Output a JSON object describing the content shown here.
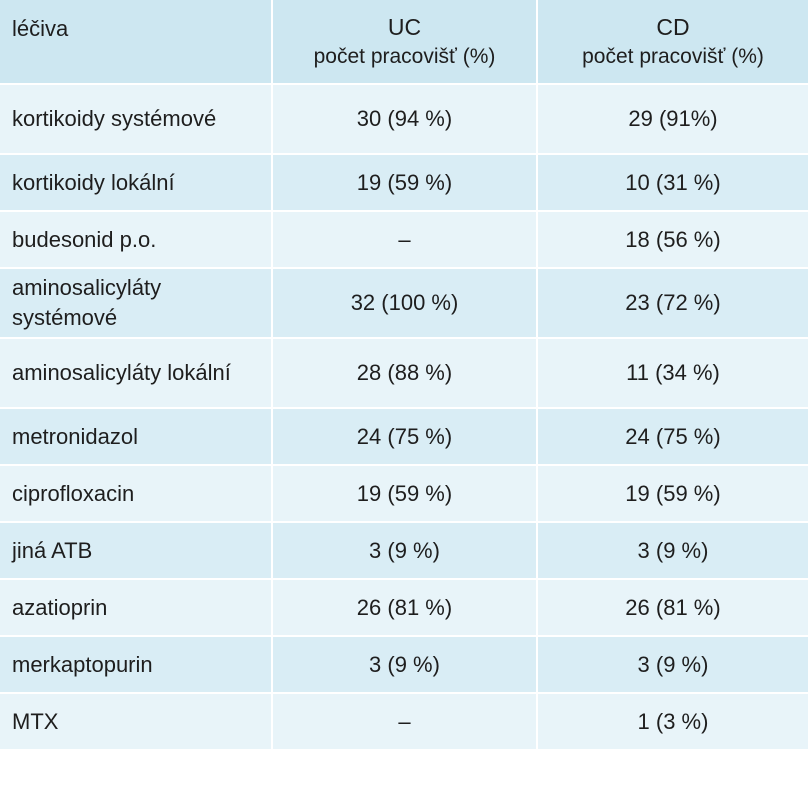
{
  "header": {
    "col1": "léčiva",
    "uc_title": "UC",
    "uc_sub": "počet pracovišť (%)",
    "cd_title": "CD",
    "cd_sub": "počet pracovišť (%)"
  },
  "rows": [
    {
      "drug": "kortikoidy systémové",
      "uc": "30 (94 %)",
      "cd": "29 (91%)"
    },
    {
      "drug": "kortikoidy lokální",
      "uc": "19 (59 %)",
      "cd": "10 (31 %)"
    },
    {
      "drug": "budesonid p.o.",
      "uc": "–",
      "cd": "18 (56 %)"
    },
    {
      "drug": "aminosalicyláty systémové",
      "uc": "32 (100 %)",
      "cd": "23 (72 %)"
    },
    {
      "drug": "aminosalicyláty lokální",
      "uc": "28 (88 %)",
      "cd": "11 (34 %)"
    },
    {
      "drug": "metronidazol",
      "uc": "24 (75 %)",
      "cd": "24 (75 %)"
    },
    {
      "drug": "ciprofloxacin",
      "uc": "19 (59 %)",
      "cd": "19 (59 %)"
    },
    {
      "drug": "jiná ATB",
      "uc": "3 (9 %)",
      "cd": "3 (9 %)"
    },
    {
      "drug": "azatioprin",
      "uc": "26 (81 %)",
      "cd": "26 (81 %)"
    },
    {
      "drug": "merkaptopurin",
      "uc": "3 (9 %)",
      "cd": "3 (9 %)"
    },
    {
      "drug": "MTX",
      "uc": "–",
      "cd": "1 (3 %)"
    }
  ],
  "colors": {
    "header_bg": "#cde7f1",
    "row_light": "#e8f4f9",
    "row_dark": "#d9edf5"
  }
}
